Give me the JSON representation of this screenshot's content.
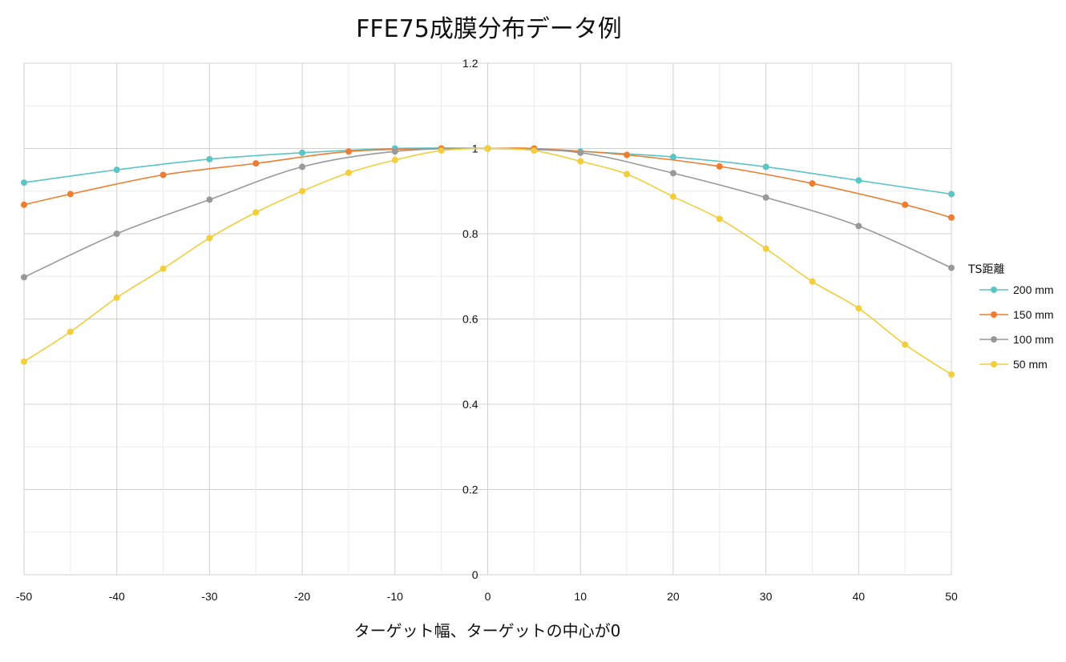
{
  "chart_data": {
    "type": "line",
    "title": "FFE75成膜分布データ例",
    "xlabel": "ターゲット幅、ターゲットの中心が0",
    "ylabel": "",
    "xlim": [
      -50,
      50
    ],
    "ylim": [
      0,
      1.2
    ],
    "x_ticks": [
      -50,
      -40,
      -30,
      -20,
      -10,
      0,
      10,
      20,
      30,
      40,
      50
    ],
    "x_tick_labels": [
      "-50",
      "-40",
      "-30",
      "-20",
      "-10",
      "0",
      "10",
      "20",
      "30",
      "40",
      "50"
    ],
    "y_ticks": [
      0,
      0.2,
      0.4,
      0.6,
      0.8,
      1,
      1.2
    ],
    "y_tick_labels": [
      "0",
      "0.2",
      "0.4",
      "0.6",
      "0.8",
      "1",
      "1.2"
    ],
    "grid": true,
    "legend_title": "TS距離",
    "legend_position": "right",
    "series": [
      {
        "name": "200 mm",
        "color": "#5bc4c4",
        "points": [
          [
            -50,
            0.92
          ],
          [
            -40,
            0.95
          ],
          [
            -30,
            0.975
          ],
          [
            -20,
            0.99
          ],
          [
            -10,
            1.0
          ],
          [
            0,
            1.0
          ],
          [
            10,
            0.993
          ],
          [
            20,
            0.98
          ],
          [
            30,
            0.957
          ],
          [
            40,
            0.925
          ],
          [
            50,
            0.893
          ]
        ]
      },
      {
        "name": "150 mm",
        "color": "#ed7d31",
        "points": [
          [
            -50,
            0.868
          ],
          [
            -45,
            0.893
          ],
          [
            -35,
            0.938
          ],
          [
            -25,
            0.965
          ],
          [
            -15,
            0.993
          ],
          [
            -5,
            1.0
          ],
          [
            0,
            1.0
          ],
          [
            5,
            1.0
          ],
          [
            15,
            0.985
          ],
          [
            25,
            0.958
          ],
          [
            35,
            0.918
          ],
          [
            45,
            0.868
          ],
          [
            50,
            0.838
          ]
        ]
      },
      {
        "name": "100 mm",
        "color": "#999999",
        "points": [
          [
            -50,
            0.698
          ],
          [
            -40,
            0.8
          ],
          [
            -30,
            0.88
          ],
          [
            -20,
            0.957
          ],
          [
            -10,
            0.993
          ],
          [
            0,
            1.0
          ],
          [
            10,
            0.99
          ],
          [
            20,
            0.942
          ],
          [
            30,
            0.885
          ],
          [
            40,
            0.818
          ],
          [
            50,
            0.72
          ]
        ]
      },
      {
        "name": "50 mm",
        "color": "#f2ce3c",
        "points": [
          [
            -50,
            0.5
          ],
          [
            -45,
            0.57
          ],
          [
            -40,
            0.65
          ],
          [
            -35,
            0.718
          ],
          [
            -30,
            0.79
          ],
          [
            -25,
            0.85
          ],
          [
            -20,
            0.9
          ],
          [
            -15,
            0.943
          ],
          [
            -10,
            0.973
          ],
          [
            -5,
            0.995
          ],
          [
            0,
            1.0
          ],
          [
            5,
            0.995
          ],
          [
            10,
            0.97
          ],
          [
            15,
            0.94
          ],
          [
            20,
            0.887
          ],
          [
            25,
            0.835
          ],
          [
            30,
            0.765
          ],
          [
            35,
            0.688
          ],
          [
            40,
            0.625
          ],
          [
            45,
            0.54
          ],
          [
            50,
            0.47
          ]
        ]
      }
    ]
  }
}
